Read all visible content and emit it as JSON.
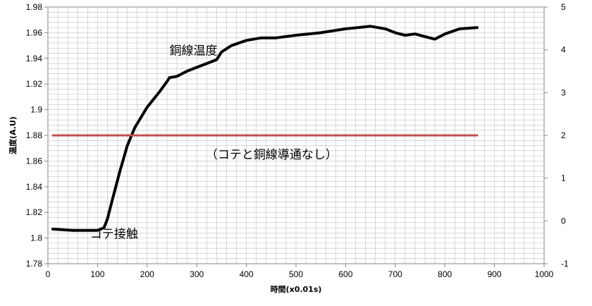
{
  "chart_data": {
    "type": "line",
    "xlabel": "時間(x0.01s)",
    "ylabel": "温度(A.U)",
    "xlim": [
      0,
      1000
    ],
    "ylim": [
      1.78,
      1.98
    ],
    "y2lim": [
      -1,
      5
    ],
    "x_ticks": [
      "0",
      "100",
      "200",
      "300",
      "400",
      "500",
      "600",
      "700",
      "800",
      "900",
      "1000"
    ],
    "y_ticks": [
      "1.78",
      "1.8",
      "1.82",
      "1.84",
      "1.86",
      "1.88",
      "1.9",
      "1.92",
      "1.94",
      "1.96",
      "1.98"
    ],
    "y2_ticks": [
      "-1",
      "0",
      "1",
      "2",
      "3",
      "4",
      "5"
    ],
    "grid": true,
    "colors": {
      "temperature": "#000000",
      "contact": "#c0504d",
      "grid": "#bfbfbf"
    },
    "series": [
      {
        "axis": "left",
        "x": [
          10,
          50,
          100,
          113,
          120,
          130,
          145,
          160,
          175,
          200,
          225,
          240,
          245,
          260,
          280,
          300,
          320,
          340,
          350,
          370,
          400,
          430,
          460,
          500,
          550,
          600,
          650,
          680,
          700,
          720,
          740,
          760,
          780,
          800,
          830,
          865
        ],
        "y": [
          1.807,
          1.806,
          1.806,
          1.808,
          1.815,
          1.83,
          1.852,
          1.872,
          1.886,
          1.902,
          1.914,
          1.922,
          1.925,
          1.926,
          1.93,
          1.933,
          1.936,
          1.939,
          1.945,
          1.95,
          1.954,
          1.956,
          1.956,
          1.958,
          1.96,
          1.963,
          1.965,
          1.963,
          1.96,
          1.958,
          1.959,
          1.957,
          1.955,
          1.959,
          1.963,
          1.964
        ]
      },
      {
        "axis": "right",
        "x": [
          10,
          865
        ],
        "y": [
          2,
          2
        ]
      }
    ],
    "annotations": [
      {
        "text": "銅線温度",
        "x": 245,
        "y": 1.943
      },
      {
        "text": "（コテと銅線導通なし）",
        "x": 318,
        "y": 1.862
      },
      {
        "text": "コテ接触",
        "x": 85,
        "y": 1.8
      }
    ]
  }
}
